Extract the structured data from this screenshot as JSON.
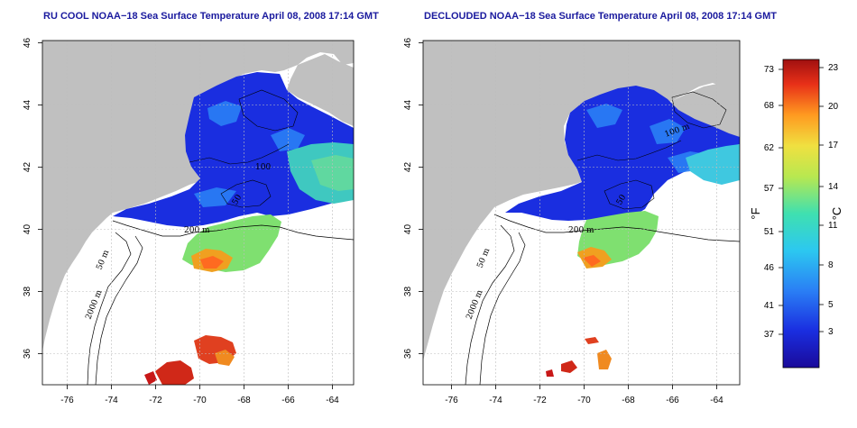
{
  "panels": [
    {
      "id": "left",
      "title": "RU COOL NOAA−18 Sea Surface Temperature April 08, 2008 17:14 GMT",
      "contour_labels": [
        "50 m",
        "2000 m",
        "200 m",
        "100",
        "50"
      ]
    },
    {
      "id": "right",
      "title": "DECLOUDED NOAA−18 Sea Surface Temperature April 08, 2008 17:14 GMT",
      "contour_labels": [
        "50 m",
        "2000 m",
        "200 m",
        "100 m",
        "50"
      ]
    }
  ],
  "axes": {
    "lon_ticks": [
      "-76",
      "-74",
      "-72",
      "-70",
      "-68",
      "-66",
      "-64"
    ],
    "lat_ticks": [
      "36",
      "38",
      "40",
      "42",
      "44",
      "46"
    ]
  },
  "colorbar": {
    "fahrenheit_ticks": [
      "73",
      "68",
      "62",
      "57",
      "51",
      "46",
      "41",
      "37"
    ],
    "celsius_ticks": [
      "23",
      "20",
      "17",
      "14",
      "11",
      "8",
      "5",
      "3"
    ],
    "f_unit": "°F",
    "c_unit": "°C"
  },
  "colors": {
    "land": "#c0c0c0",
    "ocean_blank": "#ffffff",
    "cold": "#1a2ee0",
    "cool": "#2a7ff5",
    "mid": "#3fe0c0",
    "warm": "#e8e040",
    "hot": "#ff7a1a",
    "very_hot": "#c81818",
    "title": "#1a1a9e"
  }
}
